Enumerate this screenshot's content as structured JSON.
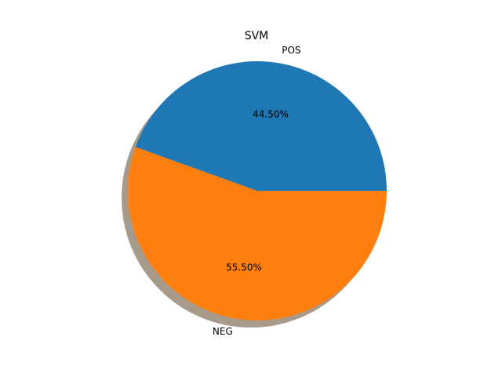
{
  "chart_data": {
    "type": "pie",
    "title": "SVM",
    "shadow": true,
    "start_angle_deg": 0,
    "direction": "counterclockwise",
    "slices": [
      {
        "label": "POS",
        "value": 44.5,
        "pct_label": "44.50%",
        "color": "#1f77b4"
      },
      {
        "label": "NEG",
        "value": 55.5,
        "pct_label": "55.50%",
        "color": "#ff7f0e"
      }
    ],
    "shadow_color": "#a89a8a"
  }
}
